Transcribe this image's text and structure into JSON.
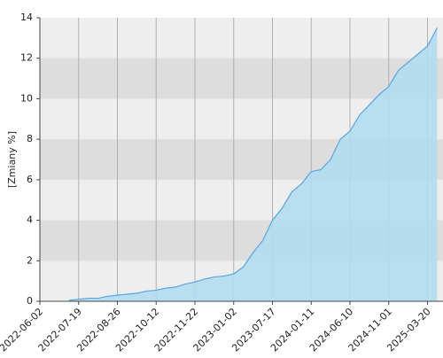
{
  "chart_data": {
    "type": "area",
    "ylabel": "[Zmiany %]",
    "categories": [
      "2022-06-02",
      null,
      null,
      null,
      "2022-07-19",
      null,
      null,
      null,
      "2022-08-26",
      null,
      null,
      null,
      "2022-10-12",
      null,
      null,
      null,
      "2022-11-22",
      null,
      null,
      null,
      "2023-01-02",
      null,
      null,
      null,
      "2023-07-17",
      null,
      null,
      null,
      "2024-01-11",
      null,
      null,
      null,
      "2024-06-10",
      null,
      null,
      null,
      "2024-11-01",
      null,
      null,
      null,
      "2025-03-20",
      null
    ],
    "values": [
      null,
      null,
      null,
      0.05,
      0.1,
      0.15,
      0.15,
      0.25,
      0.3,
      0.35,
      0.4,
      0.5,
      0.55,
      0.65,
      0.7,
      0.85,
      0.95,
      1.1,
      1.2,
      1.25,
      1.35,
      1.7,
      2.4,
      3.0,
      4.0,
      4.6,
      5.4,
      5.8,
      6.4,
      6.5,
      7.0,
      8.0,
      8.4,
      9.2,
      9.7,
      10.2,
      10.6,
      11.4,
      11.8,
      12.2,
      12.6,
      13.5
    ],
    "color": "#5aa6e0",
    "fill": "#b3dcee",
    "ylim": [
      0,
      14
    ],
    "yticks": [
      0,
      2,
      4,
      6,
      8,
      10,
      12,
      14
    ],
    "grid": true
  }
}
